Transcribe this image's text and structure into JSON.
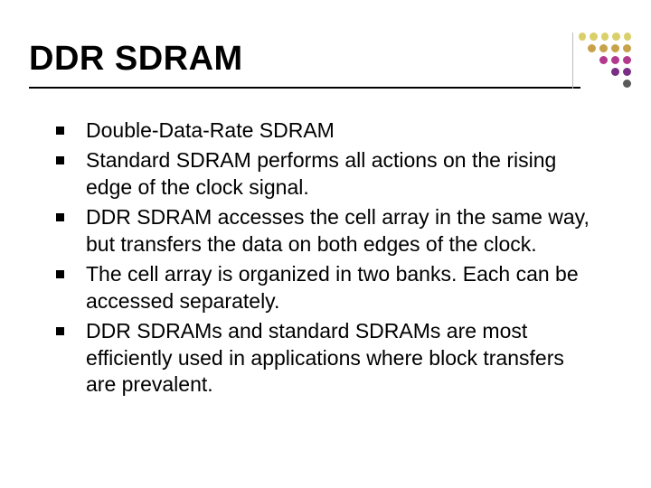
{
  "slide": {
    "title": "DDR SDRAM",
    "title_color": "#000000",
    "title_fontsize": 38,
    "underline_color": "#000000",
    "background_color": "#ffffff",
    "bullet_color": "#000000",
    "body_fontsize": 23,
    "body_color": "#000000",
    "items": [
      "Double-Data-Rate SDRAM",
      "Standard SDRAM performs all actions on the rising edge of the clock signal.",
      "DDR SDRAM accesses the cell array in the same way, but transfers the data on both edges of the clock.",
      "The cell array is organized in two banks. Each can be accessed separately.",
      "DDR SDRAMs and standard SDRAMs are most efficiently used in applications where block transfers are prevalent."
    ]
  },
  "decoration": {
    "separator_color": "#bcbcbc",
    "rows": [
      [
        "#d9d06a",
        "#d9d06a",
        "#d9d06a",
        "#d9d06a",
        "#d9d06a"
      ],
      [
        "#c7a24a",
        "#c7a24a",
        "#c7a24a",
        "#c7a24a"
      ],
      [
        "#b23a8e",
        "#b23a8e",
        "#b23a8e"
      ],
      [
        "#7a2e86",
        "#7a2e86"
      ],
      [
        "#5a5a5a"
      ]
    ]
  }
}
